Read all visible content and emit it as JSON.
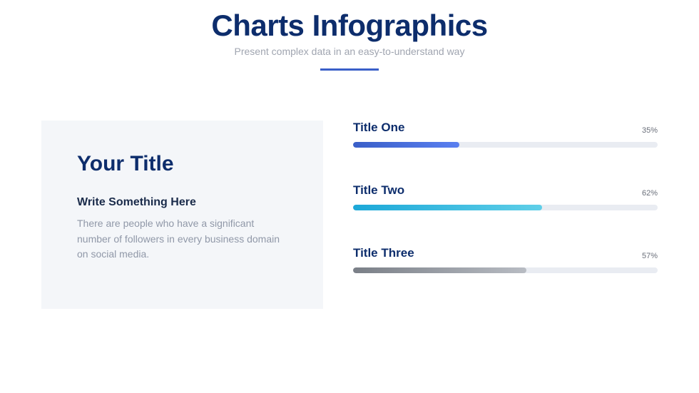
{
  "header": {
    "title": "Charts Infographics",
    "subtitle": "Present complex data in an easy-to-understand way",
    "title_color": "#0d2d6c",
    "subtitle_color": "#a0a5b0",
    "underline_color": "#3a5fc8"
  },
  "card": {
    "title": "Your Title",
    "subheading": "Write Something Here",
    "body": "There are people who have a significant number of followers in every business domain on social media.",
    "background_color": "#f4f6f9",
    "title_color": "#0d2d6c",
    "subheading_color": "#1a2b4a",
    "body_color": "#9098a8"
  },
  "bars": {
    "track_color": "#e9ecf2",
    "items": [
      {
        "label": "Title One",
        "percent_text": "35%",
        "value": 35,
        "gradient_from": "#3a5fc8",
        "gradient_to": "#5a7ff0"
      },
      {
        "label": "Title Two",
        "percent_text": "62%",
        "value": 62,
        "gradient_from": "#1ca8d8",
        "gradient_to": "#5fcfe8"
      },
      {
        "label": "Title Three",
        "percent_text": "57%",
        "value": 57,
        "gradient_from": "#7a7f87",
        "gradient_to": "#b8bcc3"
      }
    ]
  }
}
